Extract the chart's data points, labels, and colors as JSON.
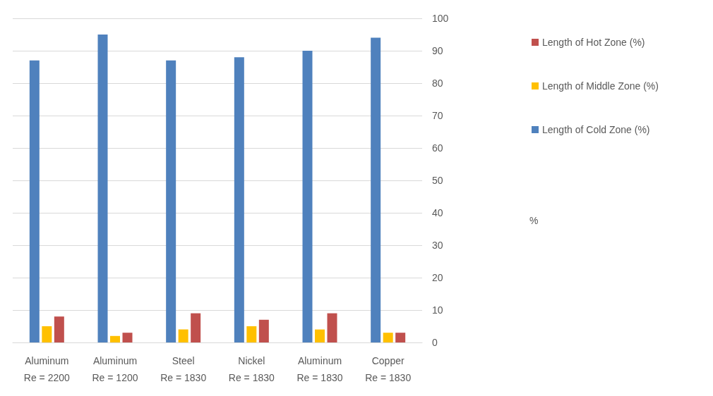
{
  "chart_data": {
    "type": "bar",
    "annotations": [
      "%"
    ],
    "categories": [
      "Aluminum\nRe = 2200",
      "Aluminum\nRe = 1200",
      "Steel\nRe = 1830",
      "Nickel\nRe = 1830",
      "Aluminum\nRe = 1830",
      "Copper\nRe = 1830"
    ],
    "series": [
      {
        "name": "Length of Cold Zone (%)",
        "color": "#4f81bd",
        "values": [
          87,
          95,
          87,
          88,
          90,
          94
        ]
      },
      {
        "name": "Length of Middle Zone (%)",
        "color": "#ffc000",
        "values": [
          5,
          2,
          4,
          5,
          4,
          3
        ]
      },
      {
        "name": "Length of Hot Zone (%)",
        "color": "#c0504d",
        "values": [
          8,
          3,
          9,
          7,
          9,
          3
        ]
      }
    ],
    "ylim": [
      0,
      100
    ],
    "yticks": [
      0,
      10,
      20,
      30,
      40,
      50,
      60,
      70,
      80,
      90,
      100
    ],
    "grid": "y",
    "legend": "right"
  }
}
